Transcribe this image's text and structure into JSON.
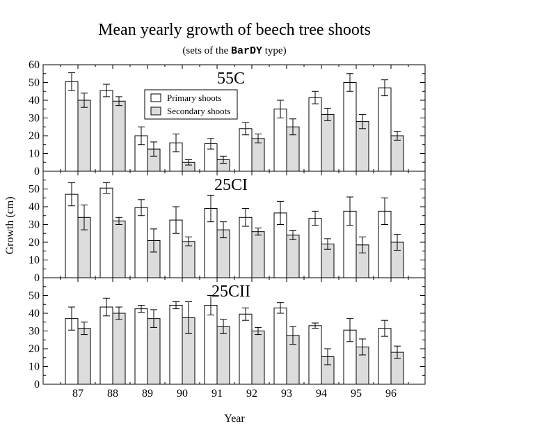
{
  "chart_data": {
    "type": "bar",
    "title": "Mean yearly growth of beech tree shoots",
    "subtitle": {
      "prefix": "(sets of the ",
      "code": "BarDY",
      "suffix": " type)"
    },
    "xlabel": "Year",
    "ylabel": "Growth (cm)",
    "categories": [
      "87",
      "88",
      "89",
      "90",
      "91",
      "92",
      "93",
      "94",
      "95",
      "96"
    ],
    "ylim": [
      0,
      60
    ],
    "yticks": [
      0,
      10,
      20,
      30,
      40,
      50,
      60
    ],
    "legend": {
      "placement": "top-center of first panel",
      "entries": [
        "Primary shoots",
        "Secondary shoots"
      ]
    },
    "colors": {
      "primary": "#ffffff",
      "secondary": "#dcdcdc",
      "stroke": "#000000"
    },
    "panels": [
      {
        "label": "55C",
        "series": [
          {
            "name": "Primary shoots",
            "values": [
              50.5,
              45.5,
              20,
              16,
              15.5,
              24,
              35,
              41.5,
              50,
              47
            ],
            "errors": [
              5,
              3.5,
              5,
              5,
              3,
              3.5,
              5,
              3.5,
              5,
              4.5
            ]
          },
          {
            "name": "Secondary shoots",
            "values": [
              40,
              39.5,
              12.5,
              5,
              6.5,
              18.5,
              25,
              32,
              28,
              20
            ],
            "errors": [
              4,
              2.5,
              4,
              1.5,
              2,
              2.5,
              4.5,
              3.5,
              4,
              2.5
            ]
          }
        ]
      },
      {
        "label": "25CI",
        "series": [
          {
            "name": "Primary shoots",
            "values": [
              47,
              50.5,
              39.5,
              32.5,
              39,
              34,
              36.5,
              33.5,
              37.5,
              37.5
            ],
            "errors": [
              6.5,
              3,
              4.5,
              7.5,
              7.5,
              5,
              6.5,
              4,
              8,
              7.5
            ]
          },
          {
            "name": "Secondary shoots",
            "values": [
              34,
              32,
              21,
              20.5,
              27,
              26,
              24,
              19,
              18.5,
              20
            ],
            "errors": [
              7,
              2,
              6.5,
              2.5,
              4.5,
              2,
              2.5,
              3,
              4.5,
              4.5
            ]
          }
        ]
      },
      {
        "label": "25CII",
        "series": [
          {
            "name": "Primary shoots",
            "values": [
              37,
              43.5,
              42.5,
              44.5,
              44.5,
              39.5,
              43,
              33,
              30.5,
              31.5
            ],
            "errors": [
              6.5,
              5,
              2,
              2,
              5.5,
              3.5,
              3,
              1.5,
              6.5,
              4.5
            ]
          },
          {
            "name": "Secondary shoots",
            "values": [
              31.5,
              40,
              37,
              37.5,
              32.5,
              30,
              27.5,
              15.5,
              21,
              18
            ],
            "errors": [
              3.5,
              3.5,
              5,
              9,
              4,
              2,
              5,
              4.5,
              4.5,
              3.5
            ]
          }
        ]
      }
    ]
  }
}
